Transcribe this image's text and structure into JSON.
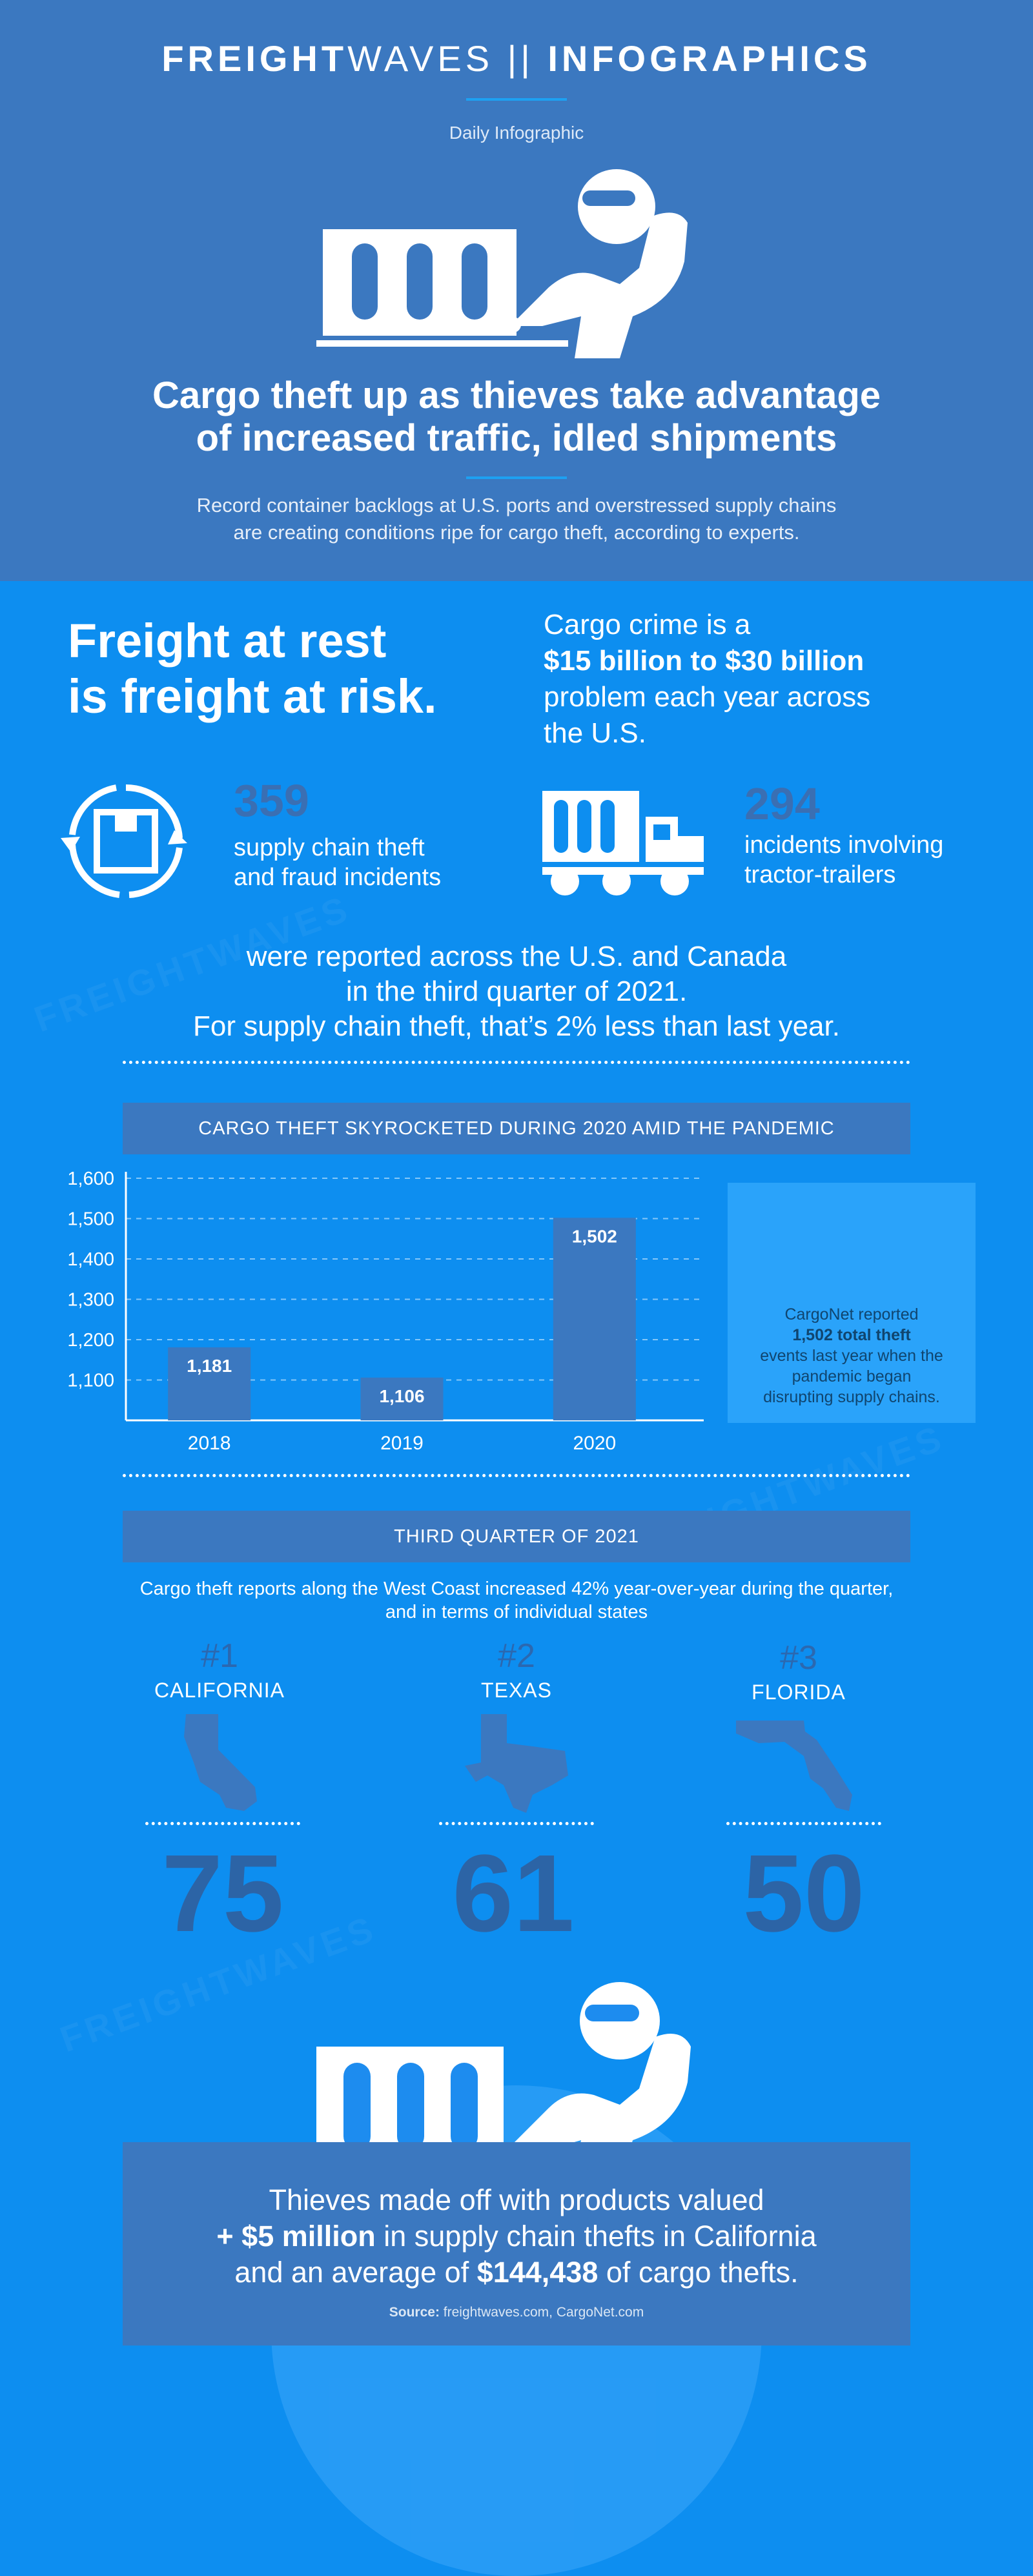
{
  "header": {
    "brand_bold": "FREIGHT",
    "brand_light": "WAVES",
    "separator": "||",
    "section": "INFOGRAPHICS",
    "subtitle": "Daily Infographic"
  },
  "headline": {
    "line1": "Cargo theft up as thieves take advantage",
    "line2": "of increased traffic, idled shipments"
  },
  "intro": {
    "line1": "Record container backlogs at U.S. ports and overstressed supply chains",
    "line2": "are creating conditions ripe for cargo theft, according to experts."
  },
  "rest": {
    "line1": "Freight at rest",
    "line2": "is freight at risk."
  },
  "crime": {
    "line1": "Cargo crime is a",
    "line2": "$15 billion to $30 billion",
    "line3": "problem each year across",
    "line4": "the U.S."
  },
  "stats": [
    {
      "number": "359",
      "line1": "supply chain theft",
      "line2": "and fraud incidents",
      "icon": "recycle-box-icon"
    },
    {
      "number": "294",
      "line1": "incidents involving",
      "line2": "tractor-trailers",
      "icon": "truck-icon"
    }
  ],
  "reported": {
    "line1": "were reported across the U.S. and Canada",
    "line2": "in the third quarter of 2021.",
    "line3": "For supply chain theft, that’s 2% less than last year."
  },
  "chart_title": "CARGO THEFT SKYROCKETED DURING 2020 AMID THE PANDEMIC",
  "chart_data": {
    "type": "bar",
    "title": "CARGO THEFT SKYROCKETED DURING 2020 AMID THE PANDEMIC",
    "categories": [
      "2018",
      "2019",
      "2020"
    ],
    "values": [
      1181,
      1106,
      1502
    ],
    "data_labels": [
      "1,181",
      "1,106",
      "1,502"
    ],
    "ylim": [
      1000,
      1600
    ],
    "yticks": [
      1100,
      1200,
      1300,
      1400,
      1500,
      1600
    ],
    "ytick_labels": [
      "1,100",
      "1,200",
      "1,300",
      "1,400",
      "1,500",
      "1,600"
    ],
    "xlabel": "",
    "ylabel": "",
    "grid": true,
    "bar_color": "#3b78c0"
  },
  "callout": {
    "line1": "CargoNet reported",
    "line2": "1,502 total theft",
    "line3": "events last year when the",
    "line4": "pandemic began",
    "line5": "disrupting supply chains."
  },
  "q3": {
    "title": "THIRD QUARTER OF 2021",
    "line1": "Cargo theft reports along the West Coast increased 42% year-over-year during the quarter,",
    "line2": "and in terms of individual states",
    "states": [
      {
        "rank": "#1",
        "name": "CALIFORNIA",
        "count": "75"
      },
      {
        "rank": "#2",
        "name": "TEXAS",
        "count": "61"
      },
      {
        "rank": "#3",
        "name": "FLORIDA",
        "count": "50"
      }
    ]
  },
  "bottom": {
    "line1": "Thieves made off with products valued",
    "line2_bold": "+ $5 million",
    "line2_rest": " in supply chain thefts in California",
    "line3_pre": "and an average of ",
    "line3_bold": "$144,438",
    "line3_post": " of cargo thefts.",
    "source_label": "Source:",
    "source_text": " freightwaves.com, CargoNet.com"
  },
  "watermark": "FREIGHTWAVES",
  "colors": {
    "dark_blue": "#3b78c0",
    "bright_blue": "#0d8ef0",
    "accent": "#1da1f2",
    "number_blue": "#2c64a6"
  }
}
